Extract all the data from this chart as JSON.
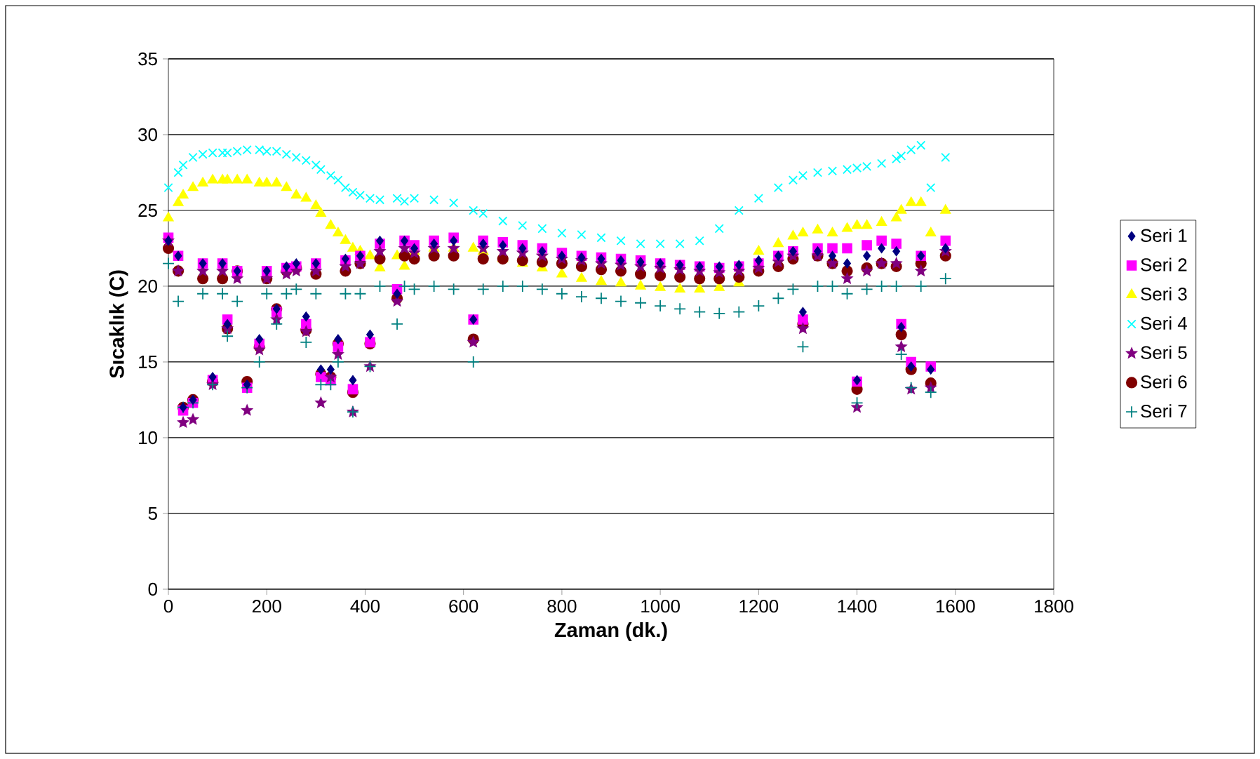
{
  "chart_data": {
    "type": "scatter",
    "xlabel": "Zaman (dk.)",
    "ylabel": "Sıcaklık (C)",
    "xlim": [
      0,
      1800
    ],
    "xticks": [
      0,
      200,
      400,
      600,
      800,
      1000,
      1200,
      1400,
      1600,
      1800
    ],
    "ylim": [
      0,
      35
    ],
    "yticks": [
      0,
      5,
      10,
      15,
      20,
      25,
      30,
      35
    ],
    "grid": "y",
    "legend": "right",
    "x": [
      0,
      20,
      30,
      50,
      70,
      90,
      110,
      120,
      140,
      160,
      185,
      200,
      220,
      240,
      260,
      280,
      300,
      310,
      330,
      345,
      360,
      375,
      390,
      410,
      430,
      465,
      480,
      500,
      540,
      580,
      620,
      640,
      680,
      720,
      760,
      800,
      840,
      880,
      920,
      960,
      1000,
      1040,
      1080,
      1120,
      1160,
      1200,
      1240,
      1270,
      1290,
      1320,
      1350,
      1380,
      1400,
      1420,
      1450,
      1480,
      1490,
      1510,
      1530,
      1550,
      1580
    ],
    "series": [
      {
        "name": "Seri 1",
        "color": "#000080",
        "marker": "diamond",
        "values": [
          23,
          22,
          12,
          12.5,
          21.5,
          14,
          21.5,
          17.5,
          21,
          13.5,
          16.5,
          21,
          18.5,
          21.3,
          21.5,
          18,
          21.5,
          14.5,
          14.5,
          16.5,
          21.8,
          13.8,
          22,
          16.8,
          23,
          19.5,
          23,
          22.5,
          22.8,
          23,
          17.8,
          22.8,
          22.7,
          22.5,
          22.3,
          22,
          21.9,
          21.8,
          21.7,
          21.6,
          21.5,
          21.4,
          21.3,
          21.3,
          21.4,
          21.7,
          22,
          22.3,
          18.3,
          22.3,
          22,
          21.5,
          13.8,
          22,
          22.5,
          22.3,
          17.3,
          14.7,
          22,
          14.5,
          22.5
        ]
      },
      {
        "name": "Seri 2",
        "color": "#ff00ff",
        "marker": "square",
        "values": [
          23.2,
          22,
          11.8,
          12.3,
          21.5,
          13.8,
          21.5,
          17.8,
          21,
          13.3,
          16.2,
          21,
          18.3,
          21.2,
          21.3,
          17.5,
          21.5,
          14,
          13.8,
          16,
          21.7,
          13.2,
          22,
          16.3,
          22.8,
          19.8,
          23,
          22.7,
          23,
          23.2,
          17.8,
          23,
          22.9,
          22.7,
          22.5,
          22.2,
          22,
          21.9,
          21.8,
          21.7,
          21.5,
          21.4,
          21.3,
          21.2,
          21.3,
          21.5,
          22,
          22.3,
          17.8,
          22.5,
          22.5,
          22.5,
          13.7,
          22.7,
          23,
          22.8,
          17.5,
          15,
          22,
          14.7,
          23
        ]
      },
      {
        "name": "Seri 3",
        "color": "#ffff00",
        "marker": "triangle",
        "values": [
          24.5,
          25.5,
          26,
          26.5,
          26.8,
          27,
          27,
          27,
          27,
          27,
          26.8,
          26.8,
          26.8,
          26.5,
          26,
          25.8,
          25.3,
          24.8,
          24,
          23.5,
          23,
          22.5,
          22.3,
          22,
          21.2,
          22,
          21.3,
          22.3,
          22.5,
          22.5,
          22.5,
          22.3,
          21.8,
          21.5,
          21.2,
          20.8,
          20.5,
          20.3,
          20.2,
          20,
          19.9,
          19.8,
          19.8,
          19.9,
          20.2,
          22.3,
          22.8,
          23.3,
          23.5,
          23.7,
          23.5,
          23.8,
          24,
          24,
          24.2,
          24.5,
          25,
          25.5,
          25.5,
          23.5,
          25
        ]
      },
      {
        "name": "Seri 4",
        "color": "#00ffff",
        "marker": "cross",
        "values": [
          26.5,
          27.5,
          28,
          28.5,
          28.7,
          28.8,
          28.8,
          28.8,
          28.9,
          29,
          29,
          28.9,
          28.9,
          28.7,
          28.5,
          28.3,
          28,
          27.7,
          27.3,
          27,
          26.5,
          26.2,
          26,
          25.8,
          25.7,
          25.8,
          25.6,
          25.8,
          25.7,
          25.5,
          25,
          24.8,
          24.3,
          24,
          23.8,
          23.5,
          23.4,
          23.2,
          23,
          22.8,
          22.8,
          22.8,
          23,
          23.8,
          25,
          25.8,
          26.5,
          27,
          27.3,
          27.5,
          27.6,
          27.7,
          27.8,
          27.9,
          28.1,
          28.4,
          28.6,
          29,
          29.3,
          26.5,
          28.5
        ]
      },
      {
        "name": "Seri 5",
        "color": "#800080",
        "marker": "star",
        "values": [
          23,
          21,
          11,
          11.2,
          21,
          13.5,
          21,
          17.2,
          20.5,
          11.8,
          15.8,
          20.5,
          17.8,
          20.8,
          21,
          17,
          21,
          12.3,
          14,
          15.5,
          21.3,
          11.7,
          21.5,
          14.7,
          22.3,
          19,
          22.5,
          22.2,
          22.5,
          22.5,
          16.3,
          22.5,
          22.3,
          22.2,
          22,
          21.8,
          21.7,
          21.5,
          21.4,
          21.3,
          21.2,
          21.1,
          21,
          20.9,
          21,
          21.2,
          21.6,
          22,
          17.2,
          22,
          21.5,
          20.5,
          12,
          21,
          21.5,
          21.5,
          16,
          13.2,
          21,
          13.3,
          22.3
        ]
      },
      {
        "name": "Seri 6",
        "color": "#800000",
        "marker": "circle",
        "values": [
          22.5,
          21,
          12,
          12.5,
          20.5,
          13.7,
          20.5,
          17.2,
          21,
          13.7,
          16,
          20.5,
          18.5,
          21,
          21.2,
          17.1,
          20.8,
          14.2,
          14,
          16.2,
          21,
          13,
          21.5,
          16.2,
          21.8,
          19.2,
          22,
          21.8,
          22,
          22,
          16.5,
          21.8,
          21.8,
          21.7,
          21.6,
          21.5,
          21.3,
          21.1,
          21,
          20.8,
          20.7,
          20.6,
          20.5,
          20.5,
          20.6,
          21,
          21.3,
          21.8,
          17.5,
          22,
          21.5,
          21,
          13.2,
          21.2,
          21.5,
          21.3,
          16.8,
          14.5,
          21.5,
          13.6,
          22
        ]
      },
      {
        "name": "Seri 7",
        "color": "#008080",
        "marker": "plus",
        "values": [
          21.5,
          19,
          12,
          12.3,
          19.5,
          13.5,
          19.5,
          16.7,
          19,
          13.3,
          15,
          19.5,
          17.5,
          19.5,
          19.8,
          16.3,
          19.5,
          13.5,
          13.5,
          15,
          19.5,
          11.7,
          19.5,
          14.7,
          20,
          17.5,
          20,
          19.8,
          20,
          19.8,
          15,
          19.8,
          20,
          20,
          19.8,
          19.5,
          19.3,
          19.2,
          19,
          18.9,
          18.7,
          18.5,
          18.3,
          18.2,
          18.3,
          18.7,
          19.2,
          19.8,
          16,
          20,
          20,
          19.5,
          12.3,
          19.8,
          20,
          20,
          15.5,
          13.3,
          20,
          13,
          20.5
        ]
      }
    ]
  }
}
